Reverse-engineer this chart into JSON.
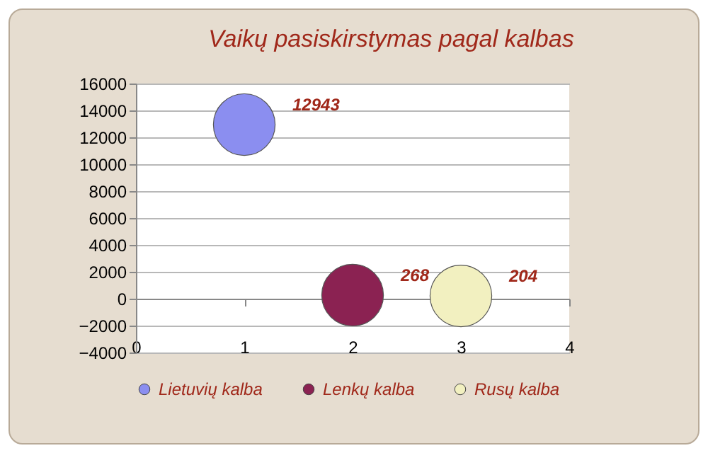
{
  "chart_data": {
    "type": "bubble",
    "title": "Vaikų pasiskirstymas pagal kalbas",
    "series": [
      {
        "name": "Lietuvių kalba",
        "color": "#8b8ef0",
        "x": [
          1
        ],
        "values": [
          12943
        ],
        "sizes": [
          1
        ]
      },
      {
        "name": "Lenkų kalba",
        "color": "#8b2252",
        "x": [
          2
        ],
        "values": [
          268
        ],
        "sizes": [
          1
        ]
      },
      {
        "name": "Rusų kalba",
        "color": "#f2f0c0",
        "x": [
          3
        ],
        "values": [
          204
        ],
        "sizes": [
          1
        ]
      }
    ],
    "xlim": [
      0,
      4
    ],
    "xticks": [
      0,
      1,
      2,
      3,
      4
    ],
    "ylim": [
      -4000,
      16000
    ],
    "yticks": [
      -4000,
      -2000,
      0,
      2000,
      4000,
      6000,
      8000,
      10000,
      12000,
      14000,
      16000
    ],
    "grid": "y",
    "legend": "bottom",
    "data_labels": true
  }
}
